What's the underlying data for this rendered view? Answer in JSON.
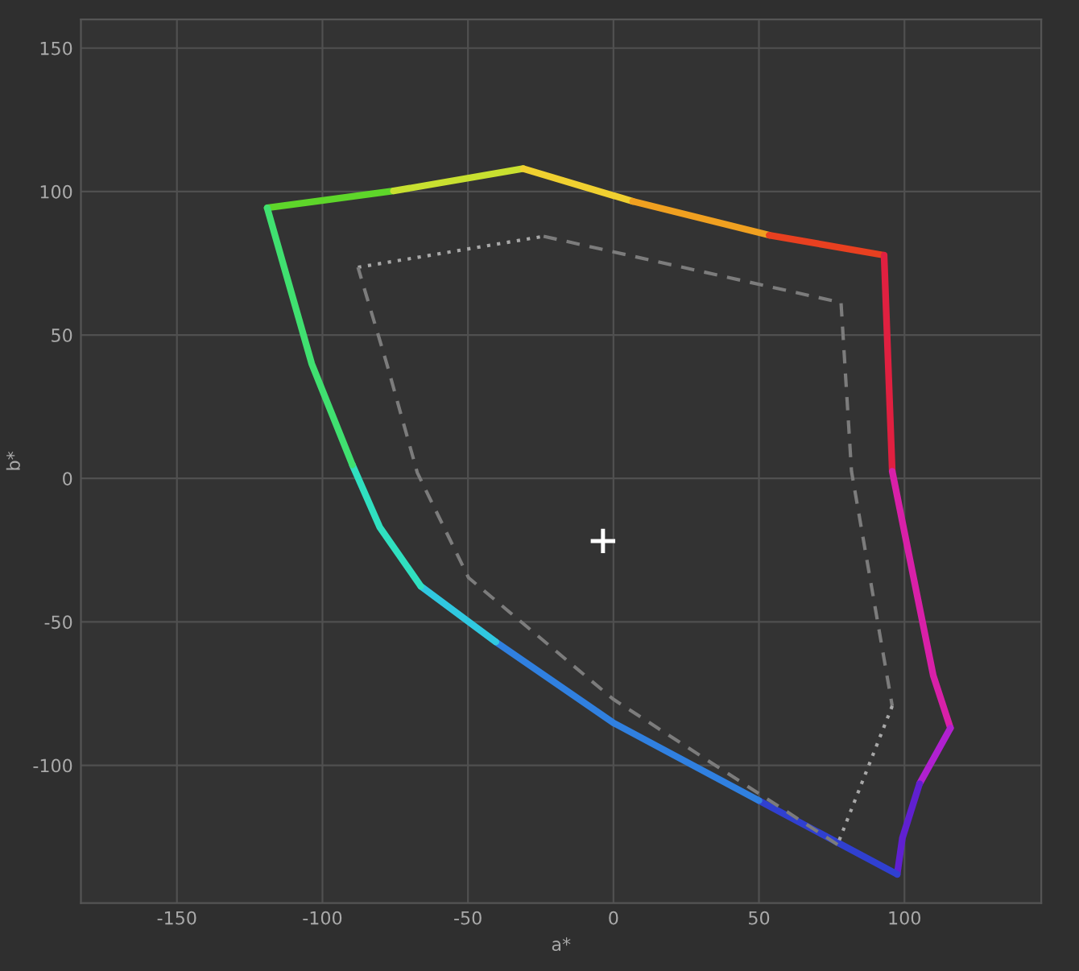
{
  "chart_data": {
    "type": "line",
    "xlabel": "a*",
    "ylabel": "b*",
    "xlim": [
      -183,
      147
    ],
    "ylim": [
      -148,
      160
    ],
    "xticks": [
      -150,
      -100,
      -50,
      0,
      50,
      100
    ],
    "yticks": [
      -100,
      -50,
      0,
      50,
      100,
      150
    ],
    "grid": true,
    "marker": "none",
    "series": [
      {
        "color": "#5ed62a",
        "x": [
          -119,
          -75.6
        ],
        "values": [
          94.3,
          100.2
        ]
      },
      {
        "color": "#c8e030",
        "x": [
          -75.6,
          -31
        ],
        "values": [
          100.2,
          108
        ]
      },
      {
        "color": "#f0d030",
        "x": [
          -31,
          6.6
        ],
        "values": [
          108,
          96.6
        ]
      },
      {
        "color": "#f0a020",
        "x": [
          6.6,
          53.5
        ],
        "values": [
          96.6,
          84.8
        ]
      },
      {
        "color": "#e84020",
        "x": [
          53.5,
          93
        ],
        "values": [
          84.8,
          77.8
        ]
      },
      {
        "color": "#e02040",
        "x": [
          93,
          95.8
        ],
        "values": [
          77.8,
          2.5
        ]
      },
      {
        "color": "#d820a8",
        "x": [
          95.8,
          102.9,
          109.9,
          115.8
        ],
        "values": [
          2.5,
          -33.4,
          -68.7,
          -87
        ]
      },
      {
        "color": "#b020d0",
        "x": [
          115.8,
          105.2
        ],
        "values": [
          -87,
          -106.4
        ]
      },
      {
        "color": "#6020d0",
        "x": [
          105.2,
          99.3,
          97.5
        ],
        "values": [
          -106.4,
          -125.3,
          -138
        ]
      },
      {
        "color": "#3040d0",
        "x": [
          97.5,
          50
        ],
        "values": [
          -138,
          -112.3
        ]
      },
      {
        "color": "#3080e0",
        "x": [
          50,
          0,
          -40.4
        ],
        "values": [
          -112.3,
          -85.2,
          -57
        ]
      },
      {
        "color": "#30c8e0",
        "x": [
          -40.4,
          -66.2
        ],
        "values": [
          -57,
          -37.6
        ]
      },
      {
        "color": "#30e0c0",
        "x": [
          -66.2,
          -80.3,
          -89.7
        ],
        "values": [
          -37.6,
          -17,
          4.7
        ]
      },
      {
        "color": "#40e070",
        "x": [
          -89.7,
          -103.7,
          -113,
          -119
        ],
        "values": [
          4.7,
          40,
          73,
          94.3
        ]
      },
      {
        "color": "#a8a8a8",
        "line_style": "dotted",
        "x": [
          -87.8,
          -24
        ],
        "values": [
          73.6,
          84.4
        ]
      },
      {
        "color": "#7c7c7c",
        "line_style": "dashed",
        "x": [
          -24,
          78.2,
          81.8,
          95.8
        ],
        "values": [
          84.4,
          61.3,
          2.5,
          -79.3
        ]
      },
      {
        "color": "#a8a8a8",
        "line_style": "dotted",
        "x": [
          95.8,
          77
        ],
        "values": [
          -79.3,
          -127.6
        ]
      },
      {
        "color": "#7c7c7c",
        "line_style": "dashed",
        "x": [
          77,
          0,
          -49.8,
          -67.4,
          -77.9,
          -87.8
        ],
        "values": [
          -127.6,
          -77,
          -34.6,
          2,
          40,
          73.6
        ]
      },
      {
        "type": "scatter",
        "color": "#ffffff",
        "marker": "cross",
        "x": [
          -3.6
        ],
        "values": [
          -21.8
        ]
      }
    ]
  }
}
